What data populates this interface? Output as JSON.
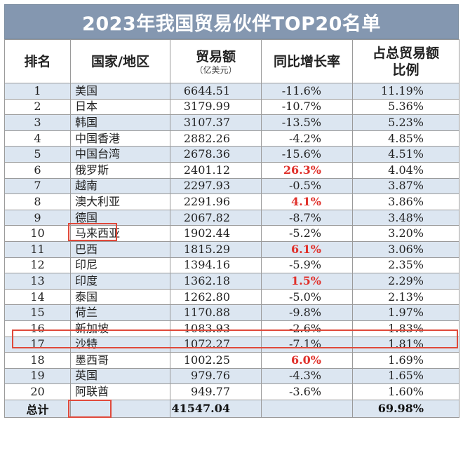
{
  "title": "2023年我国贸易伙伴TOP20名单",
  "headers": {
    "rank": "排名",
    "country": "国家/地区",
    "trade": "贸易额",
    "trade_unit": "（亿美元）",
    "growth": "同比增长率",
    "share_line1": "占总贸易额",
    "share_line2": "比例"
  },
  "rows": [
    {
      "rank": "1",
      "country": "美国",
      "trade": "6644.51",
      "growth": "-11.6%",
      "share": "11.19%"
    },
    {
      "rank": "2",
      "country": "日本",
      "trade": "3179.99",
      "growth": "-10.7%",
      "share": "5.36%"
    },
    {
      "rank": "3",
      "country": "韩国",
      "trade": "3107.37",
      "growth": "-13.5%",
      "share": "5.23%"
    },
    {
      "rank": "4",
      "country": "中国香港",
      "trade": "2882.26",
      "growth": "-4.2%",
      "share": "4.85%"
    },
    {
      "rank": "5",
      "country": "中国台湾",
      "trade": "2678.36",
      "growth": "-15.6%",
      "share": "4.51%"
    },
    {
      "rank": "6",
      "country": "俄罗斯",
      "trade": "2401.12",
      "growth": "26.3%",
      "share": "4.04%"
    },
    {
      "rank": "7",
      "country": "越南",
      "trade": "2297.93",
      "growth": "-0.5%",
      "share": "3.87%"
    },
    {
      "rank": "8",
      "country": "澳大利亚",
      "trade": "2291.96",
      "growth": "4.1%",
      "share": "3.86%"
    },
    {
      "rank": "9",
      "country": "德国",
      "trade": "2067.82",
      "growth": "-8.7%",
      "share": "3.48%"
    },
    {
      "rank": "10",
      "country": "马来西亚",
      "trade": "1902.44",
      "growth": "-5.2%",
      "share": "3.20%"
    },
    {
      "rank": "11",
      "country": "巴西",
      "trade": "1815.29",
      "growth": "6.1%",
      "share": "3.06%"
    },
    {
      "rank": "12",
      "country": "印尼",
      "trade": "1394.16",
      "growth": "-5.9%",
      "share": "2.35%"
    },
    {
      "rank": "13",
      "country": "印度",
      "trade": "1362.18",
      "growth": "1.5%",
      "share": "2.29%"
    },
    {
      "rank": "14",
      "country": "泰国",
      "trade": "1262.80",
      "growth": "-5.0%",
      "share": "2.13%"
    },
    {
      "rank": "15",
      "country": "荷兰",
      "trade": "1170.88",
      "growth": "-9.8%",
      "share": "1.97%"
    },
    {
      "rank": "16",
      "country": "新加坡",
      "trade": "1083.93",
      "growth": "-2.6%",
      "share": "1.83%"
    },
    {
      "rank": "17",
      "country": "沙特",
      "trade": "1072.27",
      "growth": "-7.1%",
      "share": "1.81%"
    },
    {
      "rank": "18",
      "country": "墨西哥",
      "trade": "1002.25",
      "growth": "6.0%",
      "share": "1.69%"
    },
    {
      "rank": "19",
      "country": "英国",
      "trade": "979.76",
      "growth": "-4.3%",
      "share": "1.65%"
    },
    {
      "rank": "20",
      "country": "阿联酋",
      "trade": "949.77",
      "growth": "-3.6%",
      "share": "1.60%"
    }
  ],
  "total": {
    "label": "总计",
    "trade": "41547.04",
    "share": "69.98%"
  },
  "colors": {
    "title_bg": "#8497b0",
    "band": "#dce6f1",
    "positive_growth": "#e0302a",
    "highlight_box": "#e0493a"
  }
}
